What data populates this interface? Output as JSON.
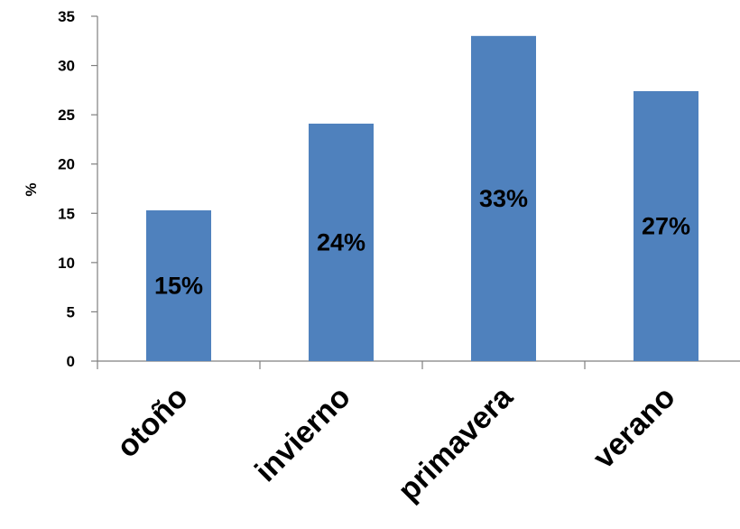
{
  "chart_data": {
    "type": "bar",
    "categories": [
      "otoño",
      "invierno",
      "primavera",
      "verano"
    ],
    "values": [
      15.3,
      24.1,
      33.0,
      27.4
    ],
    "data_labels": [
      "15%",
      "24%",
      "33%",
      "27%"
    ],
    "ylabel": "%",
    "ylim": [
      0,
      35
    ],
    "yticks": [
      "0",
      "5",
      "10",
      "15",
      "20",
      "25",
      "30",
      "35"
    ],
    "bar_color": "#4f81bd",
    "grid": false,
    "legend": "none"
  }
}
